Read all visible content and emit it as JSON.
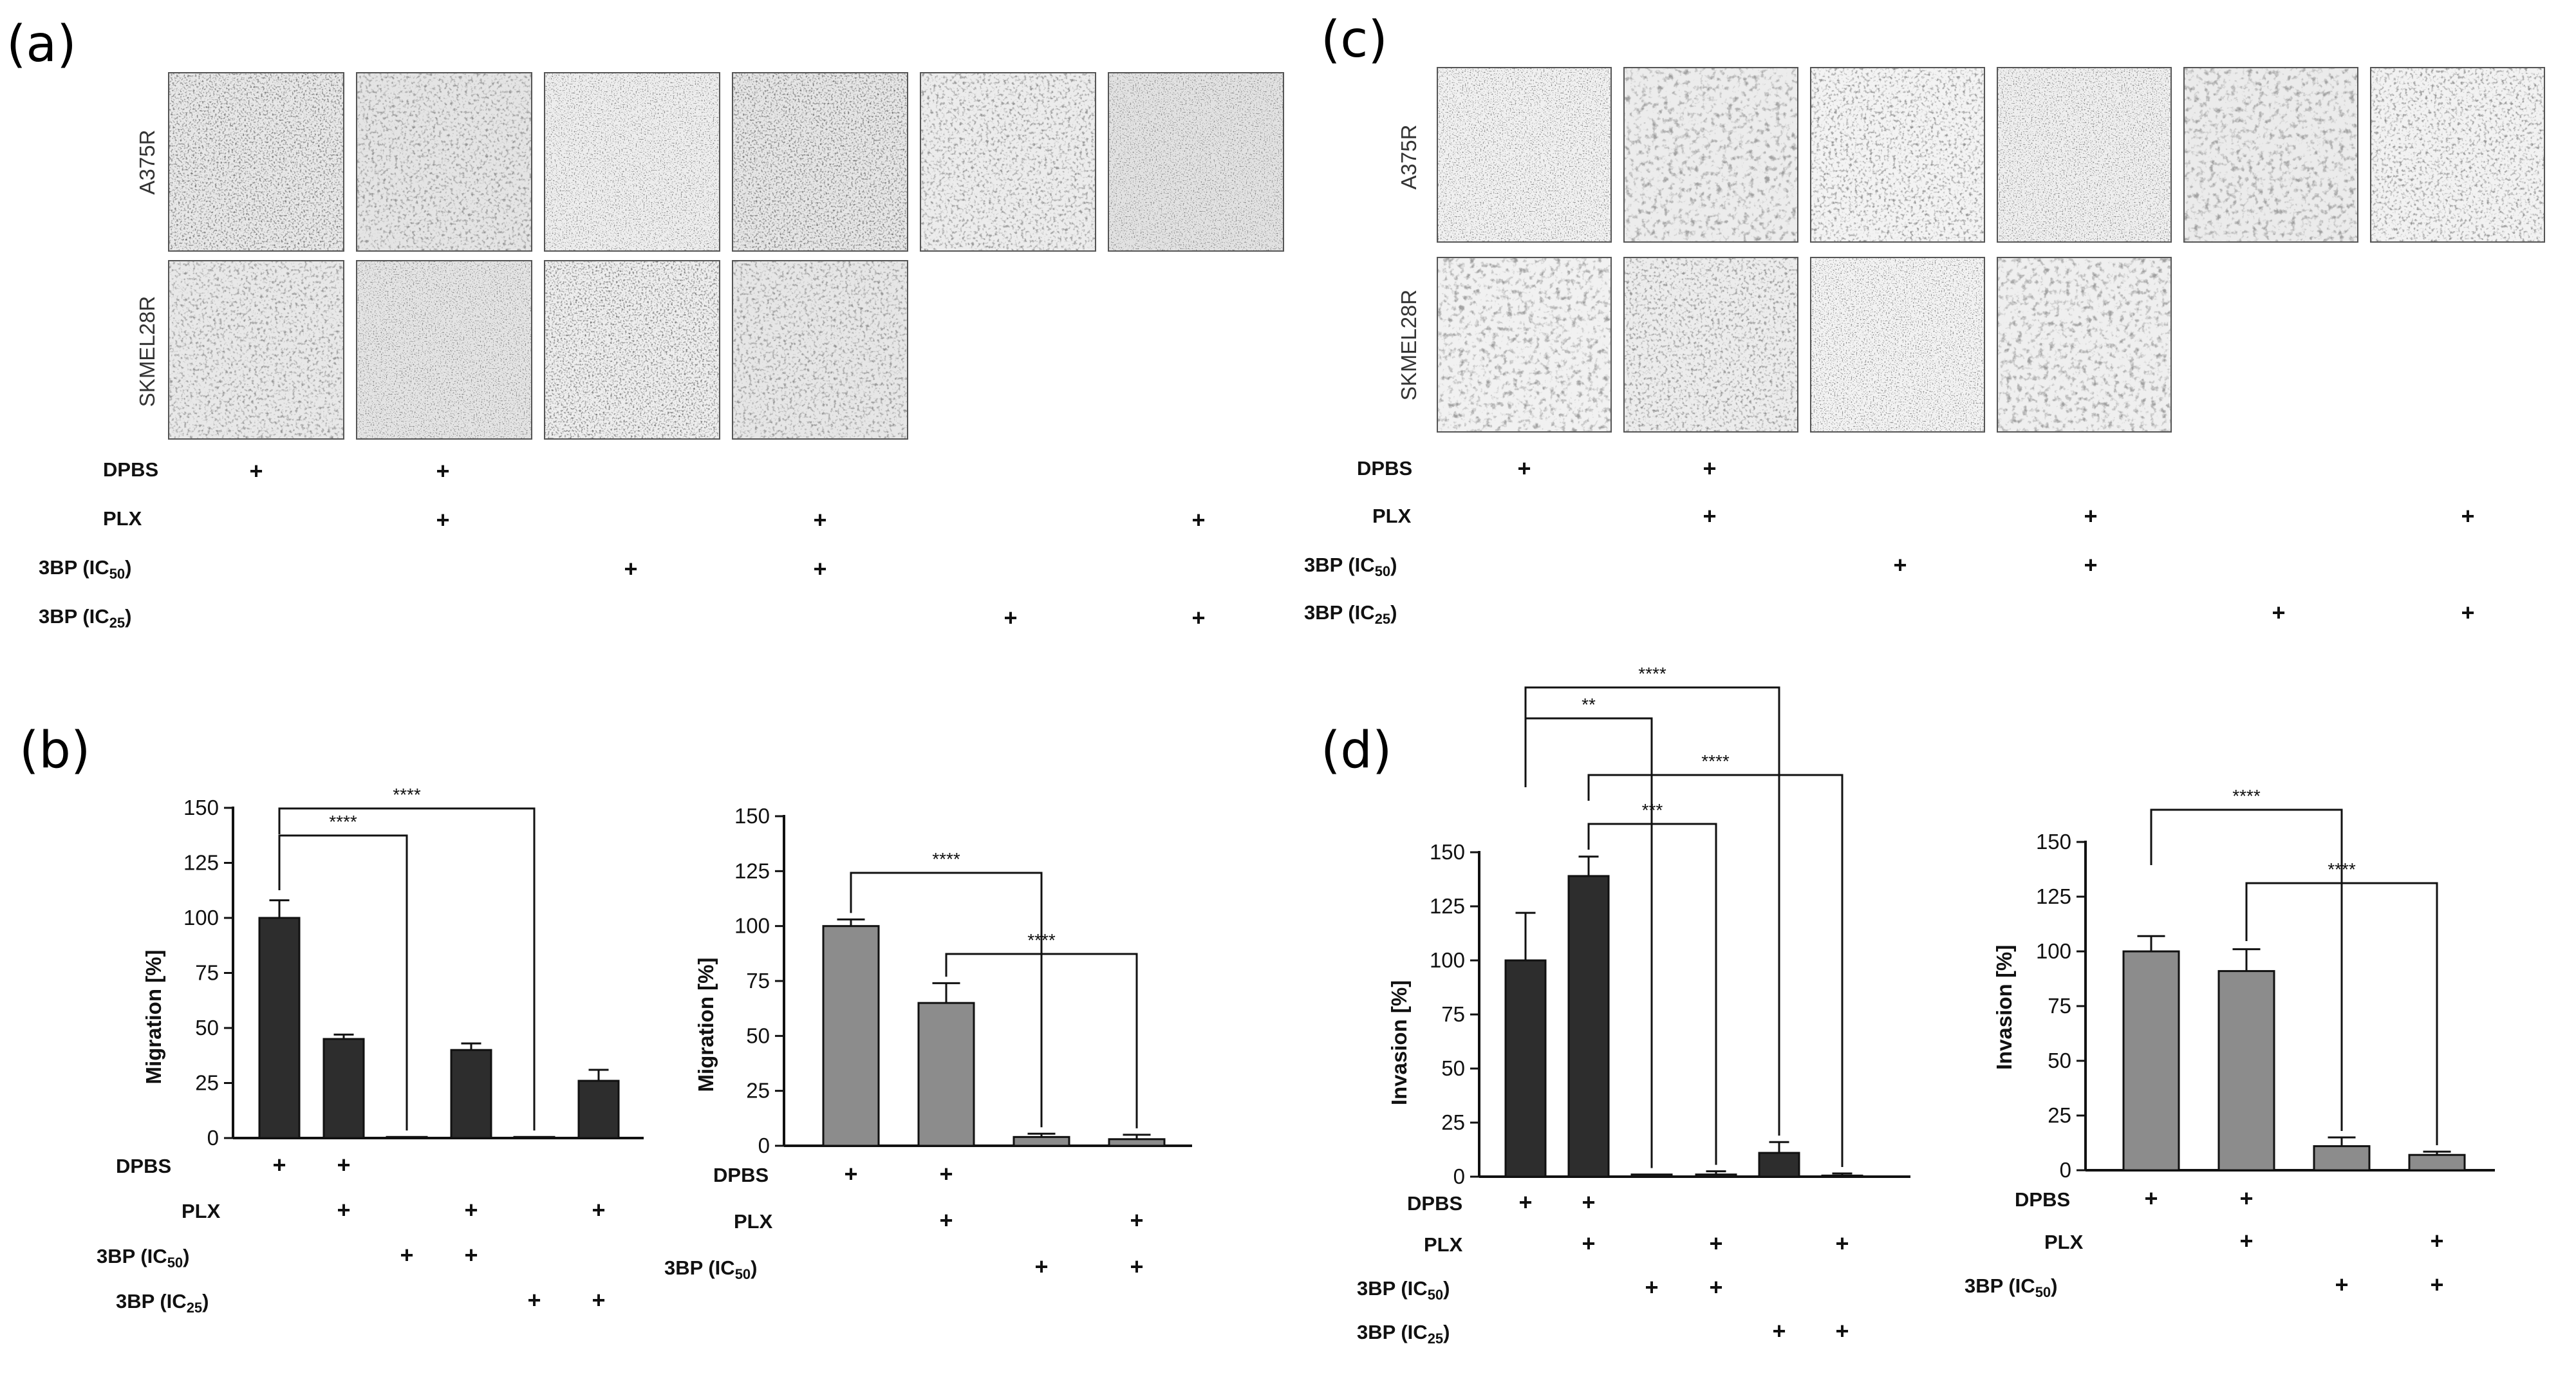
{
  "panels": {
    "a": {
      "letter": "(a)",
      "row_labels": [
        "A375R",
        "SKMEL28R"
      ],
      "images_per_row": [
        6,
        4
      ],
      "conditions": [
        "DPBS",
        "PLX",
        "3BP (IC50)",
        "3BP (IC25)"
      ],
      "plus_matrix": [
        [
          1,
          1,
          0,
          0,
          0,
          0
        ],
        [
          0,
          1,
          0,
          1,
          0,
          1
        ],
        [
          0,
          0,
          1,
          1,
          0,
          0
        ],
        [
          0,
          0,
          0,
          0,
          1,
          1
        ]
      ]
    },
    "c": {
      "letter": "(c)",
      "row_labels": [
        "A375R",
        "SKMEL28R"
      ],
      "images_per_row": [
        6,
        4
      ],
      "conditions": [
        "DPBS",
        "PLX",
        "3BP (IC50)",
        "3BP (IC25)"
      ],
      "plus_matrix": [
        [
          1,
          1,
          0,
          0,
          0,
          0
        ],
        [
          0,
          1,
          0,
          1,
          0,
          1
        ],
        [
          0,
          0,
          1,
          1,
          0,
          0
        ],
        [
          0,
          0,
          0,
          0,
          1,
          1
        ]
      ]
    },
    "b": {
      "letter": "(b)"
    },
    "d": {
      "letter": "(d)"
    }
  },
  "colors": {
    "dark_bar": "#2d2d2d",
    "gray_bar": "#8c8c8c"
  },
  "chart_data": [
    {
      "id": "b-left",
      "type": "bar",
      "ylabel": "Migration [%]",
      "ylim": [
        0,
        150
      ],
      "yticks": [
        0,
        25,
        50,
        75,
        100,
        125,
        150
      ],
      "color": "dark",
      "values": [
        100,
        45,
        0.5,
        40,
        0.5,
        26
      ],
      "errors": [
        8,
        2,
        0,
        3,
        0,
        5
      ],
      "conditions": [
        "DPBS",
        "PLX",
        "3BP (IC50)",
        "3BP (IC25)"
      ],
      "plus_matrix": [
        [
          1,
          1,
          0,
          0,
          0,
          0
        ],
        [
          0,
          1,
          0,
          1,
          0,
          1
        ],
        [
          0,
          0,
          1,
          1,
          0,
          0
        ],
        [
          0,
          0,
          0,
          0,
          1,
          1
        ]
      ],
      "significance": [
        {
          "from": 0,
          "to": 2,
          "label": "****"
        },
        {
          "from": 0,
          "to": 4,
          "label": "****"
        }
      ]
    },
    {
      "id": "b-right",
      "type": "bar",
      "ylabel": "Migration [%]",
      "ylim": [
        0,
        150
      ],
      "yticks": [
        0,
        25,
        50,
        75,
        100,
        125,
        150
      ],
      "color": "gray",
      "values": [
        100,
        65,
        4,
        3
      ],
      "errors": [
        3,
        9,
        1.5,
        2
      ],
      "conditions": [
        "DPBS",
        "PLX",
        "3BP (IC50)"
      ],
      "plus_matrix": [
        [
          1,
          1,
          0,
          0
        ],
        [
          0,
          1,
          0,
          1
        ],
        [
          0,
          0,
          1,
          1
        ]
      ],
      "significance": [
        {
          "from": 0,
          "to": 2,
          "label": "****"
        },
        {
          "from": 1,
          "to": 3,
          "label": "****"
        }
      ]
    },
    {
      "id": "d-left",
      "type": "bar",
      "ylabel": "Invasion [%]",
      "ylim": [
        0,
        150
      ],
      "yticks": [
        0,
        25,
        50,
        75,
        100,
        125,
        150
      ],
      "color": "dark",
      "values": [
        100,
        139,
        1,
        1,
        11,
        0.5
      ],
      "errors": [
        22,
        9,
        0,
        1.5,
        5,
        1
      ],
      "conditions": [
        "DPBS",
        "PLX",
        "3BP (IC50)",
        "3BP (IC25)"
      ],
      "plus_matrix": [
        [
          1,
          1,
          0,
          0,
          0,
          0
        ],
        [
          0,
          1,
          0,
          1,
          0,
          1
        ],
        [
          0,
          0,
          1,
          1,
          0,
          0
        ],
        [
          0,
          0,
          0,
          0,
          1,
          1
        ]
      ],
      "significance": [
        {
          "from": 0,
          "to": 4,
          "label": "****"
        },
        {
          "from": 0,
          "to": 2,
          "label": "**"
        },
        {
          "from": 1,
          "to": 5,
          "label": "****"
        },
        {
          "from": 1,
          "to": 3,
          "label": "***"
        }
      ]
    },
    {
      "id": "d-right",
      "type": "bar",
      "ylabel": "Invasion [%]",
      "ylim": [
        0,
        150
      ],
      "yticks": [
        0,
        25,
        50,
        75,
        100,
        125,
        150
      ],
      "color": "gray",
      "values": [
        100,
        91,
        11,
        7
      ],
      "errors": [
        7,
        10,
        4,
        1.5
      ],
      "conditions": [
        "DPBS",
        "PLX",
        "3BP (IC50)"
      ],
      "plus_matrix": [
        [
          1,
          1,
          0,
          0
        ],
        [
          0,
          1,
          0,
          1
        ],
        [
          0,
          0,
          1,
          1
        ]
      ],
      "significance": [
        {
          "from": 0,
          "to": 2,
          "label": "****"
        },
        {
          "from": 1,
          "to": 3,
          "label": "****"
        }
      ]
    }
  ]
}
